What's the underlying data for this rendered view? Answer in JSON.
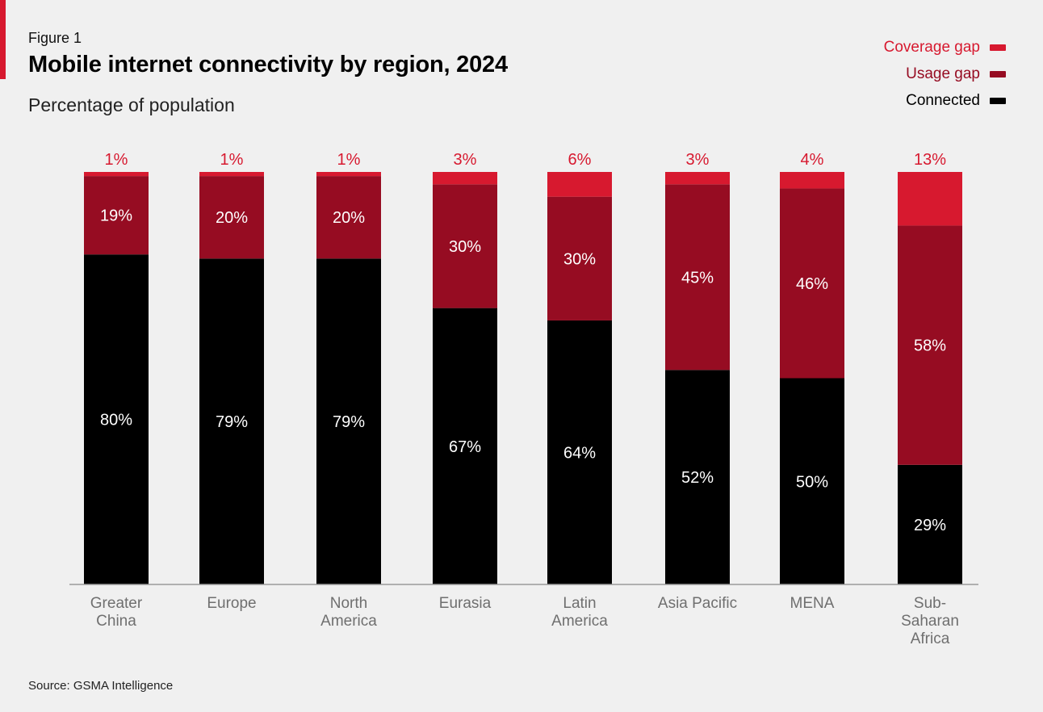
{
  "figure_label": "Figure 1",
  "source": "Source: GSMA Intelligence",
  "colors": {
    "coverage_gap": "#d7192f",
    "usage_gap": "#960c22",
    "connected": "#000000",
    "axis": "#9a9a9a",
    "category_text": "#6f6f6f"
  },
  "chart_data": {
    "type": "bar",
    "stacked": true,
    "title": "Mobile internet connectivity by region, 2024",
    "subtitle": "Percentage of population",
    "ylim": [
      0,
      100
    ],
    "grid": false,
    "legend_position": "top-right",
    "categories": [
      "Greater China",
      "Europe",
      "North America",
      "Eurasia",
      "Latin America",
      "Asia Pacific",
      "MENA",
      "Sub-Saharan Africa"
    ],
    "category_lines": [
      [
        "Greater",
        "China"
      ],
      [
        "Europe"
      ],
      [
        "North",
        "America"
      ],
      [
        "Eurasia"
      ],
      [
        "Latin",
        "America"
      ],
      [
        "Asia Pacific"
      ],
      [
        "MENA"
      ],
      [
        "Sub-",
        "Saharan",
        "Africa"
      ]
    ],
    "series": [
      {
        "name": "Connected",
        "values": [
          80,
          79,
          79,
          67,
          64,
          52,
          50,
          29
        ]
      },
      {
        "name": "Usage gap",
        "values": [
          19,
          20,
          20,
          30,
          30,
          45,
          46,
          58
        ]
      },
      {
        "name": "Coverage gap",
        "values": [
          1,
          1,
          1,
          3,
          6,
          3,
          4,
          13
        ]
      }
    ],
    "legend_order": [
      "Coverage gap",
      "Usage gap",
      "Connected"
    ]
  }
}
